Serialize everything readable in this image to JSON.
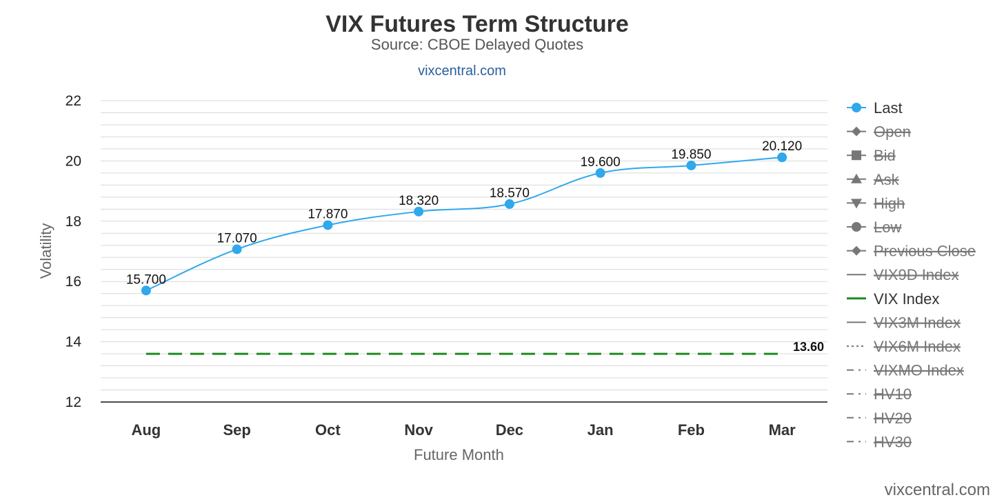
{
  "header": {
    "title": "VIX Futures Term Structure",
    "subtitle": "Source: CBOE Delayed Quotes",
    "link": "vixcentral.com"
  },
  "watermark": "vixcentral.com",
  "colors": {
    "last": "#2fa8ec",
    "vix": "#1e8a1e",
    "legend_hidden": "#777777",
    "grid": "#d9d9d9"
  },
  "chart_data": {
    "type": "line",
    "categories": [
      "Aug",
      "Sep",
      "Oct",
      "Nov",
      "Dec",
      "Jan",
      "Feb",
      "Mar"
    ],
    "xlabel": "Future Month",
    "ylabel": "Volatility",
    "ylim": [
      12,
      22
    ],
    "yticks": [
      "12",
      "14",
      "16",
      "18",
      "20",
      "22"
    ],
    "grid": true,
    "legend_placement": "right",
    "series": [
      {
        "name": "Last",
        "values": [
          15.7,
          17.07,
          17.87,
          18.32,
          18.57,
          19.6,
          19.85,
          20.12
        ],
        "labels": [
          "15.700",
          "17.070",
          "17.870",
          "18.320",
          "18.570",
          "19.600",
          "19.850",
          "20.120"
        ]
      },
      {
        "name": "VIX Index",
        "values": [
          13.6,
          13.6,
          13.6,
          13.6,
          13.6,
          13.6,
          13.6,
          13.6
        ],
        "end_label": "13.60"
      }
    ],
    "legend": [
      {
        "name": "Last",
        "symbol": "circle",
        "line": "solid",
        "visible": true
      },
      {
        "name": "Open",
        "symbol": "diamond",
        "line": "solid",
        "visible": false
      },
      {
        "name": "Bid",
        "symbol": "square",
        "line": "solid",
        "visible": false
      },
      {
        "name": "Ask",
        "symbol": "triangle-up",
        "line": "solid",
        "visible": false
      },
      {
        "name": "High",
        "symbol": "triangle-down",
        "line": "solid",
        "visible": false
      },
      {
        "name": "Low",
        "symbol": "circle",
        "line": "solid",
        "visible": false
      },
      {
        "name": "Previous Close",
        "symbol": "diamond",
        "line": "solid",
        "visible": false
      },
      {
        "name": "VIX9D Index",
        "symbol": "none",
        "line": "solid",
        "visible": false
      },
      {
        "name": "VIX Index",
        "symbol": "none",
        "line": "solid",
        "visible": true
      },
      {
        "name": "VIX3M Index",
        "symbol": "none",
        "line": "solid",
        "visible": false
      },
      {
        "name": "VIX6M Index",
        "symbol": "none",
        "line": "dotted",
        "visible": false
      },
      {
        "name": "VIXMO Index",
        "symbol": "none",
        "line": "dashdot",
        "visible": false
      },
      {
        "name": "HV10",
        "symbol": "none",
        "line": "dashdot",
        "visible": false
      },
      {
        "name": "HV20",
        "symbol": "none",
        "line": "dashdot",
        "visible": false
      },
      {
        "name": "HV30",
        "symbol": "none",
        "line": "dashdot",
        "visible": false
      }
    ]
  }
}
